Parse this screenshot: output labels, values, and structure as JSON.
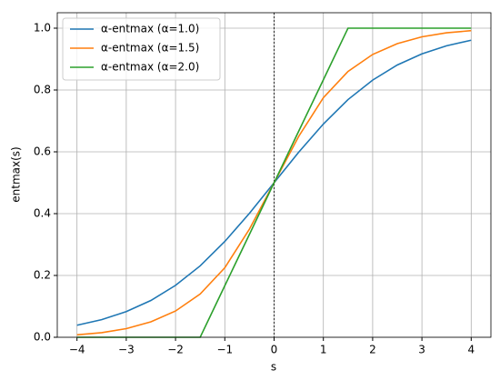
{
  "chart_data": {
    "type": "line",
    "x_label": "s",
    "y_label": "entmax(s)",
    "x": [
      -4,
      -3.5,
      -3,
      -2.5,
      -2,
      -1.5,
      -1,
      -0.5,
      0,
      0.5,
      1,
      1.5,
      2,
      2.5,
      3,
      3.5,
      4
    ],
    "series": [
      {
        "name": "α-entmax (α=1.0)",
        "color": "#1f77b4",
        "values": [
          0.039,
          0.057,
          0.083,
          0.119,
          0.168,
          0.231,
          0.31,
          0.401,
          0.5,
          0.599,
          0.69,
          0.769,
          0.832,
          0.881,
          0.917,
          0.943,
          0.961
        ]
      },
      {
        "name": "α-entmax (α=1.5)",
        "color": "#ff7f0e",
        "values": [
          0.008,
          0.015,
          0.028,
          0.05,
          0.085,
          0.14,
          0.225,
          0.35,
          0.5,
          0.65,
          0.775,
          0.86,
          0.915,
          0.95,
          0.972,
          0.985,
          0.992
        ]
      },
      {
        "name": "α-entmax (α=2.0)",
        "color": "#2ca02c",
        "values": [
          0,
          0,
          0,
          0,
          0,
          0,
          0.167,
          0.333,
          0.5,
          0.667,
          0.833,
          1,
          1,
          1,
          1,
          1,
          1
        ]
      }
    ],
    "xlim": [
      -4.4,
      4.4
    ],
    "xticks": [
      {
        "value": -4,
        "label": "−4"
      },
      {
        "value": -3,
        "label": "−3"
      },
      {
        "value": -2,
        "label": "−2"
      },
      {
        "value": -1,
        "label": "−1"
      },
      0,
      1,
      2,
      3,
      4
    ],
    "ylim": [
      0,
      1.05
    ],
    "yticks": [
      {
        "value": 0,
        "label": "0.0"
      },
      0.2,
      0.4,
      0.6,
      0.8,
      {
        "value": 1,
        "label": "1.0"
      }
    ],
    "vline_x": 0,
    "grid": true,
    "legend": "upper-left"
  }
}
